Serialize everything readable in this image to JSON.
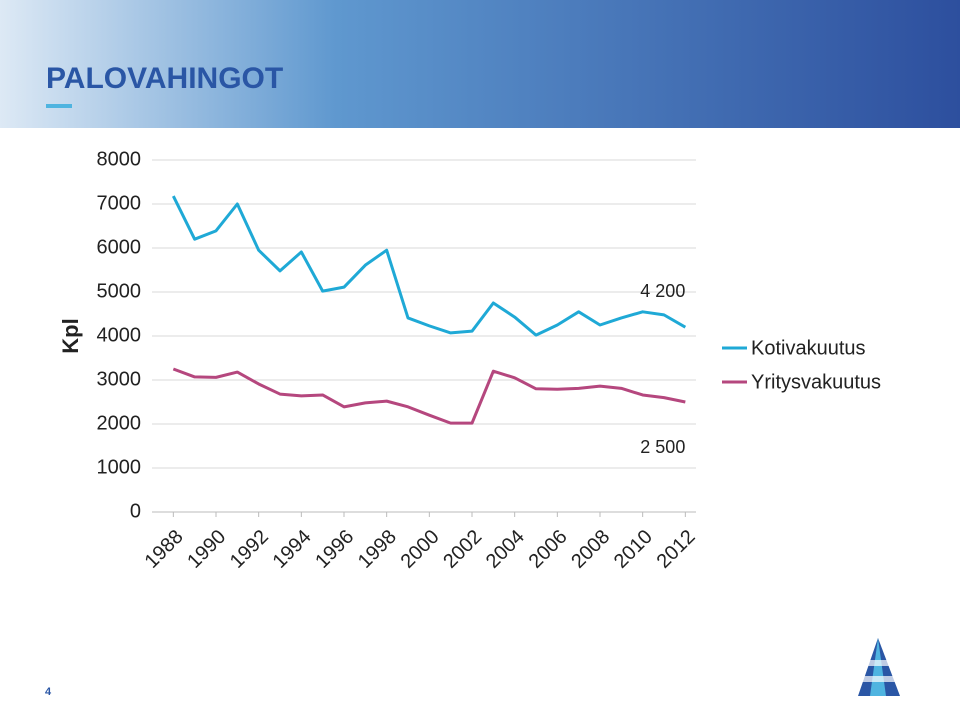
{
  "page_number": "4",
  "chart_data": {
    "type": "line",
    "title": "PALOVAHINGOT",
    "y_label": "Kpl",
    "x": [
      1988,
      1989,
      1990,
      1991,
      1992,
      1993,
      1994,
      1995,
      1996,
      1997,
      1998,
      1999,
      2000,
      2001,
      2002,
      2003,
      2004,
      2005,
      2006,
      2007,
      2008,
      2009,
      2010,
      2011,
      2012
    ],
    "xlim": [
      1987,
      2012.5
    ],
    "xticks": [
      1988,
      1990,
      1992,
      1994,
      1996,
      1998,
      2000,
      2002,
      2004,
      2006,
      2008,
      2010,
      2012
    ],
    "ylim": [
      0,
      8000
    ],
    "yticks": [
      0,
      1000,
      2000,
      3000,
      4000,
      5000,
      6000,
      7000,
      8000
    ],
    "grid": true,
    "legend": "right",
    "series": [
      {
        "name": "Kotivakuutus",
        "color": "#1fa9d6",
        "values": [
          7180,
          6200,
          6390,
          7000,
          5950,
          5480,
          5910,
          5020,
          5110,
          5610,
          5950,
          4410,
          4230,
          4070,
          4110,
          4750,
          4430,
          4020,
          4250,
          4550,
          4250,
          4410,
          4550,
          4480,
          4200
        ]
      },
      {
        "name": "Yritysvakuutus",
        "color": "#b5477e",
        "values": [
          3250,
          3070,
          3060,
          3180,
          2910,
          2680,
          2640,
          2660,
          2390,
          2480,
          2520,
          2390,
          2200,
          2020,
          2020,
          3200,
          3050,
          2800,
          2790,
          2810,
          2860,
          2810,
          2660,
          2600,
          2500
        ]
      }
    ],
    "annotations": [
      {
        "text": "4 200",
        "x": 2012,
        "y": 5000
      },
      {
        "text": "2 500",
        "x": 2012,
        "y": 1450
      }
    ]
  }
}
